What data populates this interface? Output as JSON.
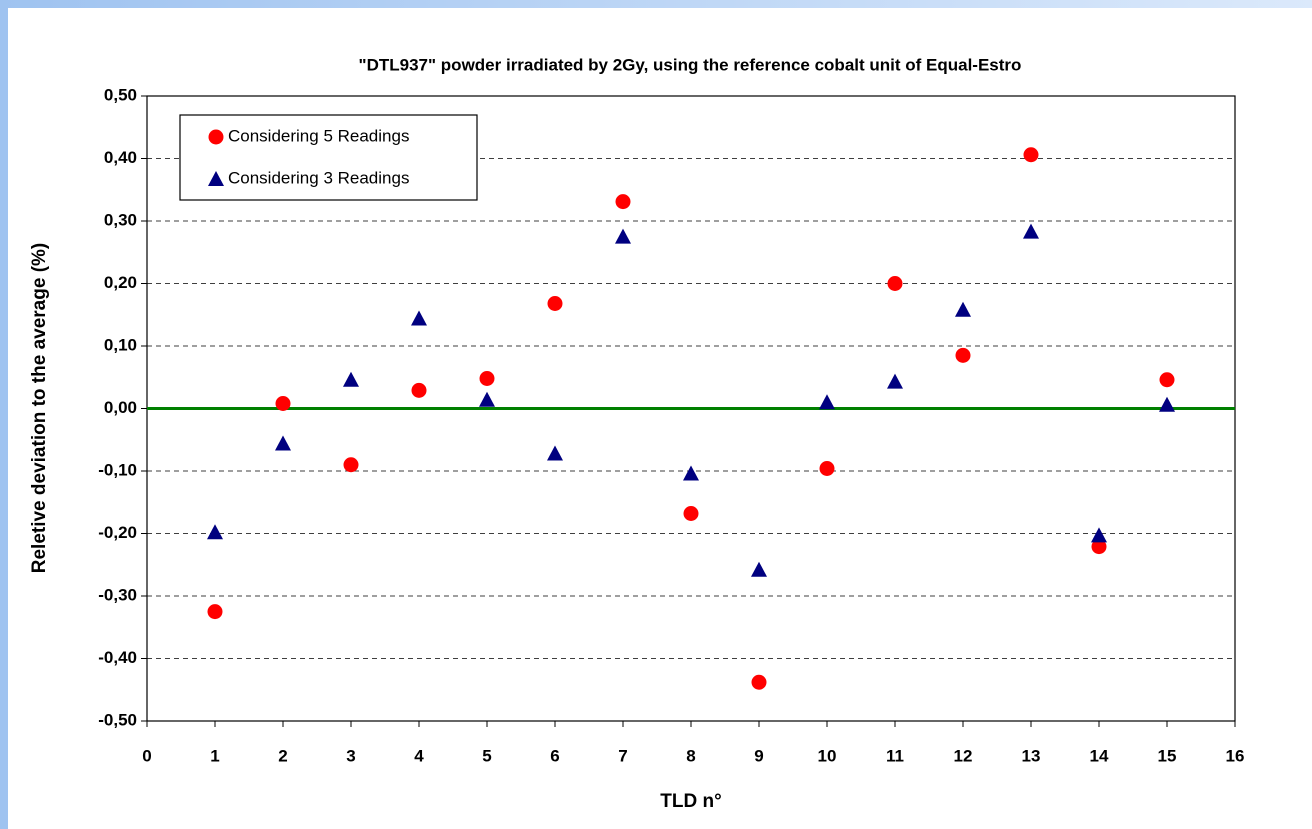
{
  "chart_data": {
    "type": "scatter",
    "title": "\"DTL937\" powder irradiated by 2Gy, using the reference cobalt unit of Equal-Estro",
    "xlabel": "TLD n°",
    "ylabel": "Reletive deviation to the average (%)",
    "x": [
      1,
      2,
      3,
      4,
      5,
      6,
      7,
      8,
      9,
      10,
      11,
      12,
      13,
      14,
      15
    ],
    "series": [
      {
        "name": "Considering 5 Readings",
        "color": "#ff0000",
        "marker": "circle",
        "values": [
          -0.325,
          0.008,
          -0.09,
          0.029,
          0.048,
          0.168,
          0.331,
          -0.168,
          -0.438,
          -0.096,
          0.2,
          0.085,
          0.406,
          -0.221,
          0.046
        ]
      },
      {
        "name": "Considering 3 Readings",
        "color": "#000080",
        "marker": "triangle",
        "values": [
          -0.198,
          -0.056,
          0.046,
          0.144,
          0.014,
          -0.072,
          0.275,
          -0.104,
          -0.258,
          0.01,
          0.043,
          0.158,
          0.283,
          -0.203,
          0.006
        ]
      }
    ],
    "xlim": [
      0,
      16
    ],
    "xticks": [
      0,
      1,
      2,
      3,
      4,
      5,
      6,
      7,
      8,
      9,
      10,
      11,
      12,
      13,
      14,
      15,
      16
    ],
    "ylim": [
      -0.5,
      0.5
    ],
    "yticks": [
      {
        "value": -0.5,
        "label": "-0,50"
      },
      {
        "value": -0.4,
        "label": "-0,40"
      },
      {
        "value": -0.3,
        "label": "-0,30"
      },
      {
        "value": -0.2,
        "label": "-0,20"
      },
      {
        "value": -0.1,
        "label": "-0,10"
      },
      {
        "value": 0,
        "label": "0,00"
      },
      {
        "value": 0.1,
        "label": "0,10"
      },
      {
        "value": 0.2,
        "label": "0,20"
      },
      {
        "value": 0.3,
        "label": "0,30"
      },
      {
        "value": 0.4,
        "label": "0,40"
      },
      {
        "value": 0.5,
        "label": "0,50"
      }
    ],
    "grid": true,
    "reference_line": {
      "value": 0,
      "color": "#008000"
    },
    "legend": "upper left"
  }
}
